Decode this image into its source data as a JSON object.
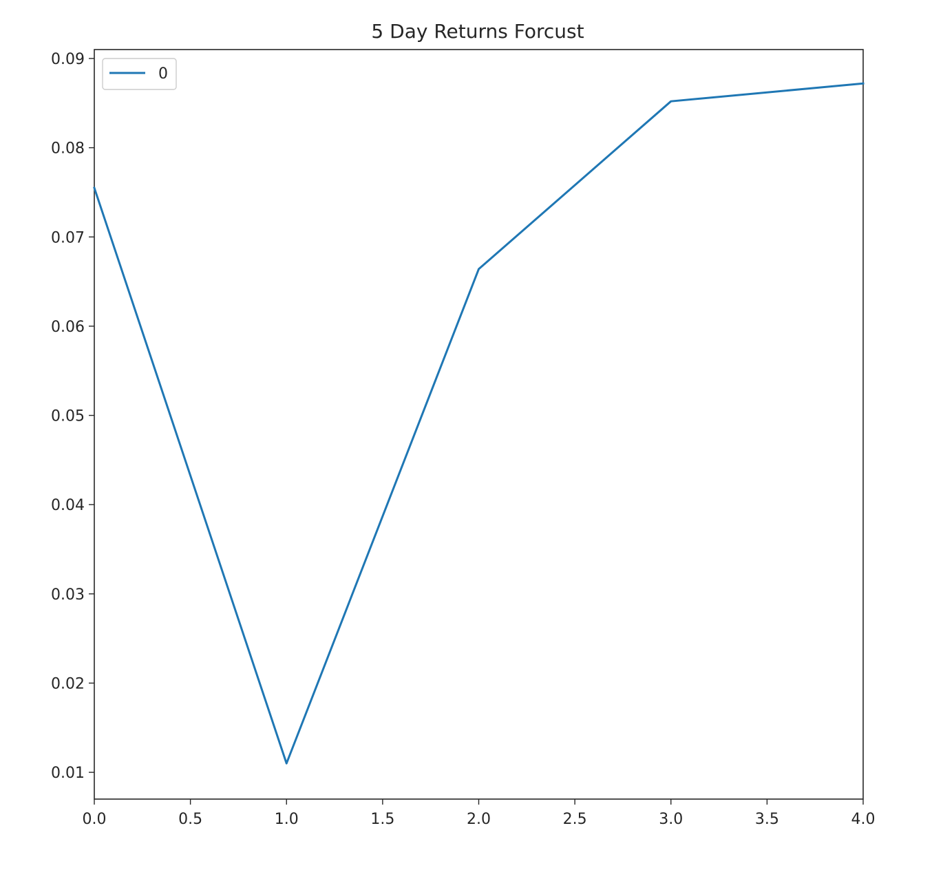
{
  "chart_data": {
    "type": "line",
    "title": "5 Day Returns Forcust",
    "xlabel": "",
    "ylabel": "",
    "xlim": [
      0,
      4
    ],
    "ylim": [
      0.007,
      0.091
    ],
    "x_ticks": [
      0.0,
      0.5,
      1.0,
      1.5,
      2.0,
      2.5,
      3.0,
      3.5,
      4.0
    ],
    "x_tick_labels": [
      "0.0",
      "0.5",
      "1.0",
      "1.5",
      "2.0",
      "2.5",
      "3.0",
      "3.5",
      "4.0"
    ],
    "y_ticks": [
      0.01,
      0.02,
      0.03,
      0.04,
      0.05,
      0.06,
      0.07,
      0.08,
      0.09
    ],
    "y_tick_labels": [
      "0.01",
      "0.02",
      "0.03",
      "0.04",
      "0.05",
      "0.06",
      "0.07",
      "0.08",
      "0.09"
    ],
    "grid": false,
    "legend_position": "top-left",
    "series": [
      {
        "name": "0",
        "color": "#1f77b4",
        "x": [
          0,
          1,
          2,
          3,
          4
        ],
        "y": [
          0.0755,
          0.011,
          0.0664,
          0.0852,
          0.0872
        ]
      }
    ]
  }
}
